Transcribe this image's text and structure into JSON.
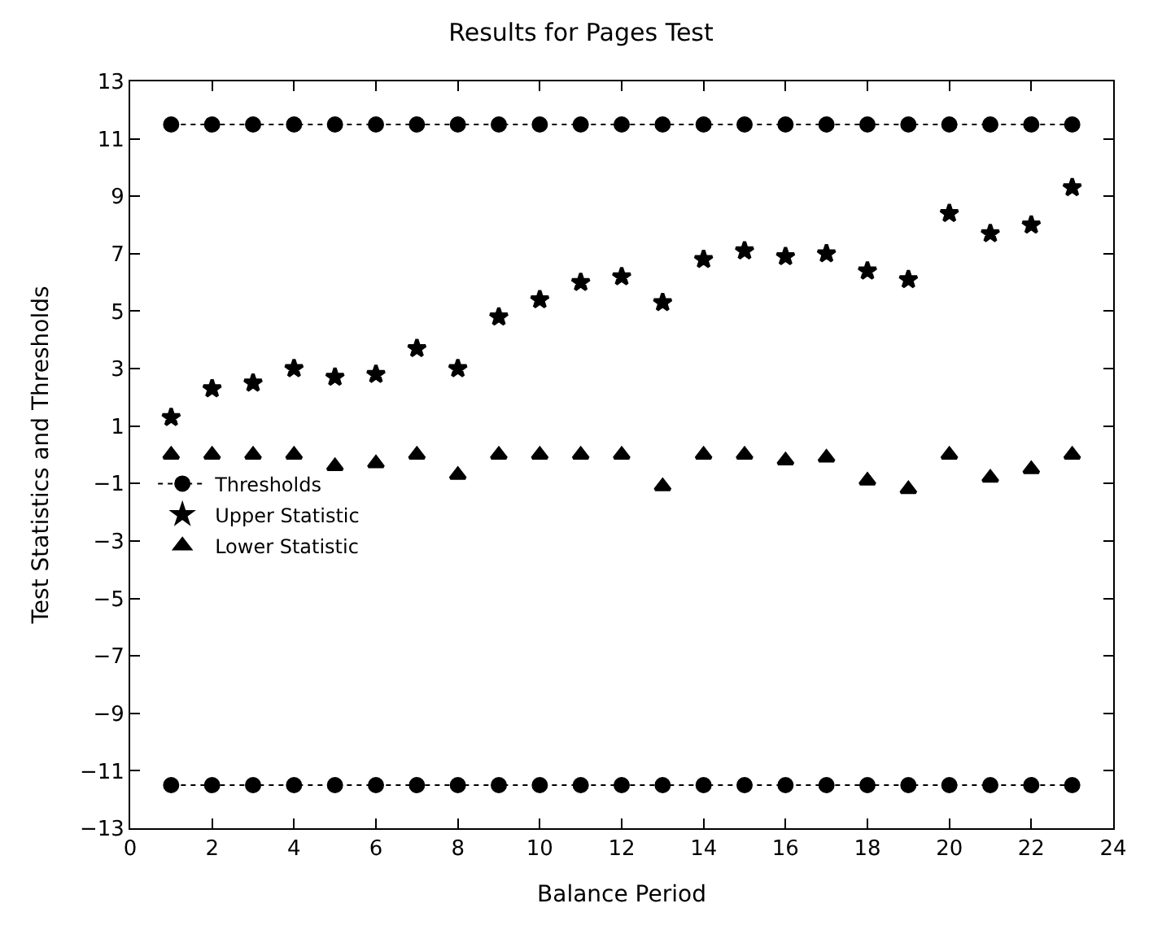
{
  "chart_data": {
    "type": "scatter",
    "title": "Results for Pages Test",
    "xlabel": "Balance Period",
    "ylabel": "Test Statistics and Thresholds",
    "x": [
      1,
      2,
      3,
      4,
      5,
      6,
      7,
      8,
      9,
      10,
      11,
      12,
      13,
      14,
      15,
      16,
      17,
      18,
      19,
      20,
      21,
      22,
      23
    ],
    "series": [
      {
        "name": "Thresholds",
        "color": "#000000",
        "marker": "circle",
        "type": "line",
        "line_style": "dotted",
        "values": [
          11.5,
          11.5,
          11.5,
          11.5,
          11.5,
          11.5,
          11.5,
          11.5,
          11.5,
          11.5,
          11.5,
          11.5,
          11.5,
          11.5,
          11.5,
          11.5,
          11.5,
          11.5,
          11.5,
          11.5,
          11.5,
          11.5,
          11.5
        ]
      },
      {
        "name": "Upper Statistic",
        "color": "#000000",
        "marker": "star",
        "values": [
          1.3,
          2.3,
          2.5,
          3.0,
          2.7,
          2.8,
          3.7,
          3.0,
          4.8,
          5.4,
          6.0,
          6.2,
          5.3,
          6.8,
          7.1,
          6.9,
          7.0,
          6.4,
          6.1,
          8.4,
          7.7,
          8.0,
          9.3
        ]
      },
      {
        "name": "Lower Statistic",
        "color": "#000000",
        "marker": "triangle",
        "values": [
          0,
          0,
          0,
          0,
          -0.4,
          -0.3,
          0,
          -0.7,
          0,
          0,
          0,
          0,
          -1.1,
          0,
          0,
          -0.2,
          -0.1,
          -0.9,
          -1.2,
          0,
          -0.8,
          -0.5,
          0
        ]
      },
      {
        "color": "#000000",
        "marker": "circle",
        "type": "line",
        "line_style": "dotted",
        "values": [
          -11.5,
          -11.5,
          -11.5,
          -11.5,
          -11.5,
          -11.5,
          -11.5,
          -11.5,
          -11.5,
          -11.5,
          -11.5,
          -11.5,
          -11.5,
          -11.5,
          -11.5,
          -11.5,
          -11.5,
          -11.5,
          -11.5,
          -11.5,
          -11.5,
          -11.5,
          -11.5
        ]
      }
    ],
    "xlim": [
      0,
      24
    ],
    "xticks": [
      0,
      2,
      4,
      6,
      8,
      10,
      12,
      14,
      16,
      18,
      20,
      22,
      24
    ],
    "ylim": [
      -13,
      13
    ],
    "yticks": [
      -13,
      -11,
      -9,
      -7,
      -5,
      -3,
      -1,
      1,
      3,
      5,
      7,
      9,
      11,
      13
    ],
    "legend": "left"
  }
}
